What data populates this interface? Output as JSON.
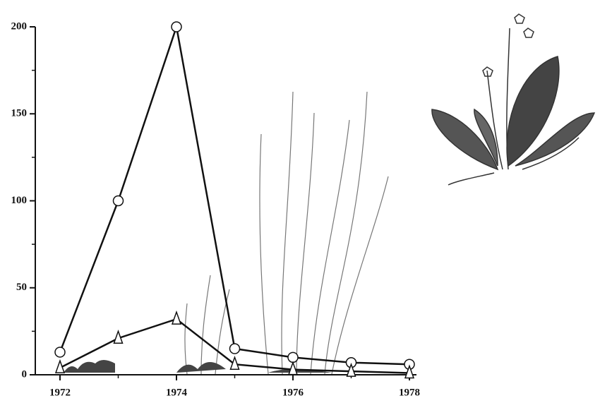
{
  "chart_data": {
    "type": "line",
    "x": [
      1972,
      1973,
      1974,
      1975,
      1976,
      1977,
      1978
    ],
    "series": [
      {
        "marker": "circle",
        "color": "#111111",
        "values": [
          13,
          100,
          200,
          15,
          10,
          7,
          6
        ]
      },
      {
        "marker": "triangle",
        "color": "#111111",
        "values": [
          4,
          21,
          32,
          6,
          3,
          2,
          1
        ]
      }
    ],
    "xlim": [
      1972,
      1978
    ],
    "xticks": [
      1972,
      1974,
      1976,
      1978
    ],
    "xminorticks": [
      1973,
      1975,
      1977
    ],
    "ylim": [
      0,
      200
    ],
    "yticks": [
      0,
      50,
      100,
      150,
      200
    ],
    "yminorticks": [
      25,
      75,
      125,
      175
    ],
    "grid": false
  }
}
